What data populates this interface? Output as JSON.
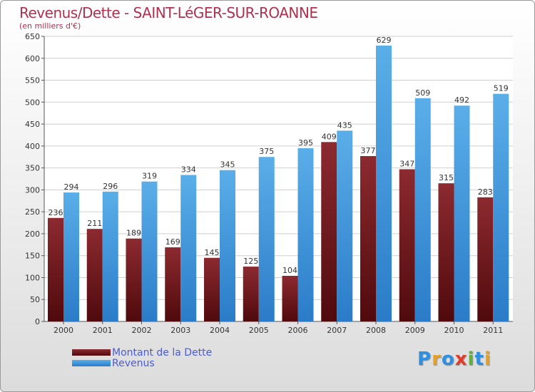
{
  "chart_data": {
    "type": "bar",
    "title": "Revenus/Dette - SAINT-LéGER-SUR-ROANNE",
    "subtitle": "(en milliers d'€)",
    "categories": [
      "2000",
      "2001",
      "2002",
      "2003",
      "2004",
      "2005",
      "2006",
      "2007",
      "2008",
      "2009",
      "2010",
      "2011"
    ],
    "series": [
      {
        "name": "Montant de la Dette",
        "color": "#7a1418",
        "values": [
          236,
          211,
          189,
          169,
          145,
          125,
          104,
          409,
          377,
          347,
          315,
          283
        ]
      },
      {
        "name": "Revenus",
        "color": "#4da3e6",
        "values": [
          294,
          296,
          319,
          334,
          345,
          375,
          395,
          435,
          629,
          509,
          492,
          519
        ]
      }
    ],
    "ylim": [
      0,
      650
    ],
    "yticks": [
      0,
      50,
      100,
      150,
      200,
      250,
      300,
      350,
      400,
      450,
      500,
      550,
      600,
      650
    ],
    "grid": true,
    "legend_position": "bottom-left"
  },
  "logo": {
    "text": "Proxiti",
    "letters": [
      "P",
      "r",
      "o",
      "x",
      "i",
      "t",
      "i"
    ],
    "colors": [
      "#2f8fe0",
      "#e8a020",
      "#2f8fe0",
      "#e23c2c",
      "#60b040",
      "#2f8fe0",
      "#e8a020"
    ]
  }
}
